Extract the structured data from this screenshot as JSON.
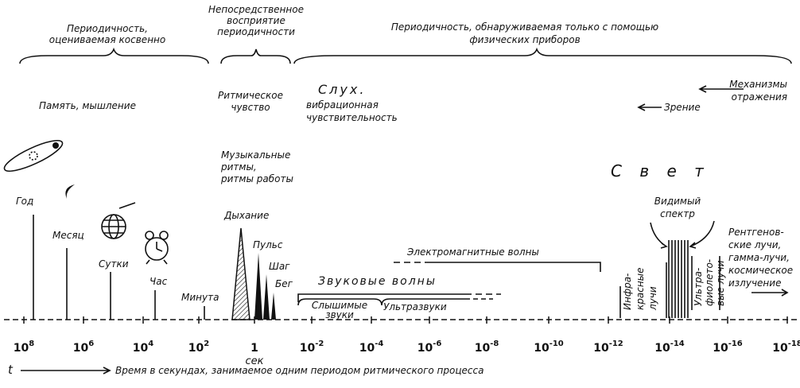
{
  "header": {
    "groups": [
      {
        "lines": [
          "Периодичность,",
          "оцениваемая косвенно"
        ]
      },
      {
        "lines": [
          "Непосредственное",
          "восприятие",
          "периодичности"
        ]
      },
      {
        "lines": [
          "Периодичность, обнаруживаемая только с помощью",
          "физических приборов"
        ]
      }
    ]
  },
  "categories": {
    "memory": "Память, мышление",
    "rhythm": [
      "Ритмическое",
      "чувство"
    ],
    "music": [
      "Музыкальные",
      "ритмы,",
      "ритмы работы"
    ],
    "hearing": [
      "Слух.",
      "вибрационная",
      "чувствительность"
    ],
    "mechanisms": [
      "Механизмы",
      "отражения"
    ],
    "vision": "Зрение",
    "light": "С в е т"
  },
  "markers": [
    "Год",
    "Месяц",
    "Сутки",
    "Час",
    "Минута",
    "Дыхание",
    "Пульс",
    "Шаг",
    "Бег"
  ],
  "waves": {
    "em": "Электромагнитные волны",
    "sound": "Звуковые волны",
    "audible": [
      "Слышимые",
      "звуки"
    ],
    "ultrasound": "Ультразвуки",
    "infrared": [
      "Инфра-",
      "красные",
      "лучи"
    ],
    "visible": [
      "Видимый",
      "спектр"
    ],
    "ultraviolet": [
      "Ультра-",
      "фиолето-",
      "вые лучи"
    ],
    "xray": [
      "Рентгенов-",
      "ские лучи,",
      "гамма-лучи,",
      "космическое",
      "излучение"
    ]
  },
  "axis": {
    "ticks": [
      {
        "base": "10",
        "exponent": "8"
      },
      {
        "base": "10",
        "exponent": "6"
      },
      {
        "base": "10",
        "exponent": "4"
      },
      {
        "base": "10",
        "exponent": "2"
      },
      {
        "base": "1"
      },
      {
        "base": "10",
        "exponent": "-2"
      },
      {
        "base": "10",
        "exponent": "-4"
      },
      {
        "base": "10",
        "exponent": "-6"
      },
      {
        "base": "10",
        "exponent": "-8"
      },
      {
        "base": "10",
        "exponent": "-10"
      },
      {
        "base": "10",
        "exponent": "-12"
      },
      {
        "base": "10",
        "exponent": "-14"
      },
      {
        "base": "10",
        "exponent": "-16"
      },
      {
        "base": "10",
        "exponent": "-18"
      }
    ],
    "unit": "сек",
    "variable": "t",
    "caption": "Время в секундах, занимаемое одним периодом ритмического процесса"
  }
}
